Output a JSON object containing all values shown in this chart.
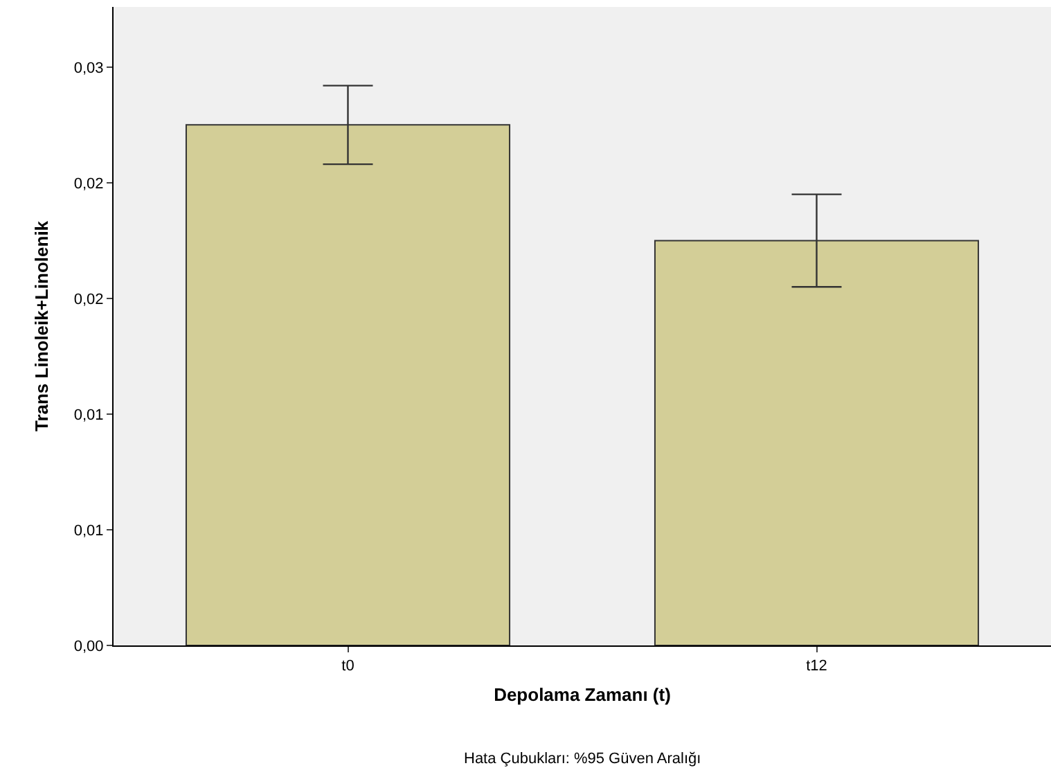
{
  "chart_data": {
    "type": "bar",
    "xlabel": "Depolama Zamanı (t)",
    "ylabel": "Trans Linoleik+Linolenik",
    "categories": [
      "t0",
      "t12"
    ],
    "values": [
      0.0225,
      0.0175
    ],
    "color": "#d3ce97",
    "errors": [
      [
        0.0208,
        0.0242
      ],
      [
        0.0155,
        0.0195
      ]
    ],
    "ylim": [
      0,
      0.0276
    ],
    "yticks": [
      {
        "value": 0,
        "label": "0,00"
      },
      {
        "value": 0.005,
        "label": "0,01"
      },
      {
        "value": 0.01,
        "label": "0,01"
      },
      {
        "value": 0.015,
        "label": "0,02"
      },
      {
        "value": 0.02,
        "label": "0,02"
      },
      {
        "value": 0.025,
        "label": "0,03"
      }
    ],
    "grid": false,
    "annotations": [
      "Hata Çubukları: %95 Güven Aralığı"
    ]
  }
}
